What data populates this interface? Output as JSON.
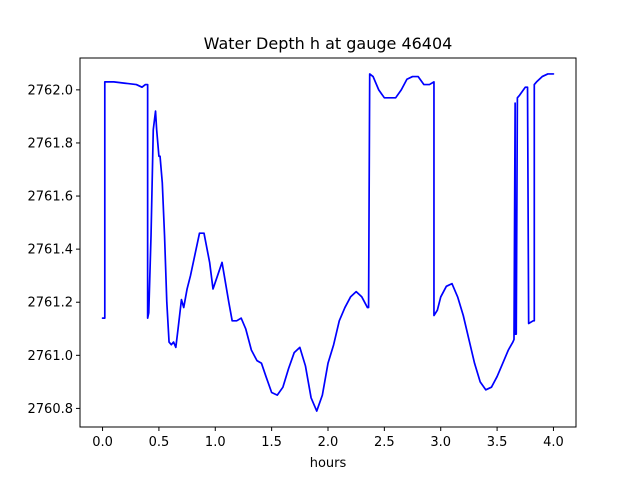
{
  "chart_data": {
    "type": "line",
    "title": "Water Depth h at gauge 46404",
    "xlabel": "hours",
    "ylabel": "",
    "xlim": [
      -0.2,
      4.2
    ],
    "ylim": [
      2760.73,
      2762.12
    ],
    "grid": false,
    "x_ticks": [
      "0.0",
      "0.5",
      "1.0",
      "1.5",
      "2.0",
      "2.5",
      "3.0",
      "3.5",
      "4.0"
    ],
    "y_ticks": [
      "2760.8",
      "2761.0",
      "2761.2",
      "2761.4",
      "2761.6",
      "2761.8",
      "2762.0"
    ],
    "series": [
      {
        "color": "#0000ff",
        "x": [
          0.0,
          0.02,
          0.02,
          0.1,
          0.2,
          0.3,
          0.35,
          0.38,
          0.4,
          0.4,
          0.41,
          0.43,
          0.45,
          0.47,
          0.48,
          0.5,
          0.51,
          0.53,
          0.55,
          0.57,
          0.59,
          0.61,
          0.63,
          0.65,
          0.67,
          0.7,
          0.72,
          0.75,
          0.78,
          0.82,
          0.86,
          0.9,
          0.95,
          0.98,
          1.02,
          1.06,
          1.08,
          1.12,
          1.15,
          1.19,
          1.23,
          1.27,
          1.32,
          1.37,
          1.41,
          1.45,
          1.5,
          1.55,
          1.6,
          1.65,
          1.7,
          1.75,
          1.8,
          1.85,
          1.9,
          1.95,
          2.0,
          2.05,
          2.1,
          2.15,
          2.2,
          2.25,
          2.3,
          2.35,
          2.36,
          2.37,
          2.4,
          2.45,
          2.5,
          2.55,
          2.6,
          2.65,
          2.7,
          2.75,
          2.8,
          2.85,
          2.9,
          2.94,
          2.94,
          2.97,
          3.0,
          3.05,
          3.1,
          3.15,
          3.2,
          3.25,
          3.3,
          3.35,
          3.4,
          3.45,
          3.5,
          3.55,
          3.6,
          3.64,
          3.65,
          3.66,
          3.66,
          3.67,
          3.68,
          3.7,
          3.75,
          3.77,
          3.78,
          3.82,
          3.83,
          3.83,
          3.85,
          3.9,
          3.95,
          4.0
        ],
        "values": [
          2761.14,
          2761.14,
          2762.03,
          2762.03,
          2762.025,
          2762.02,
          2762.01,
          2762.02,
          2762.02,
          2761.14,
          2761.16,
          2761.45,
          2761.85,
          2761.92,
          2761.85,
          2761.75,
          2761.75,
          2761.65,
          2761.45,
          2761.2,
          2761.05,
          2761.04,
          2761.05,
          2761.03,
          2761.1,
          2761.21,
          2761.18,
          2761.25,
          2761.3,
          2761.38,
          2761.46,
          2761.46,
          2761.35,
          2761.25,
          2761.3,
          2761.35,
          2761.3,
          2761.2,
          2761.13,
          2761.13,
          2761.14,
          2761.1,
          2761.02,
          2760.98,
          2760.97,
          2760.92,
          2760.86,
          2760.85,
          2760.88,
          2760.95,
          2761.01,
          2761.03,
          2760.96,
          2760.84,
          2760.79,
          2760.85,
          2760.97,
          2761.04,
          2761.13,
          2761.18,
          2761.22,
          2761.24,
          2761.22,
          2761.18,
          2761.18,
          2762.06,
          2762.05,
          2762.0,
          2761.97,
          2761.97,
          2761.97,
          2762.0,
          2762.04,
          2762.05,
          2762.05,
          2762.02,
          2762.02,
          2762.03,
          2761.15,
          2761.17,
          2761.22,
          2761.26,
          2761.27,
          2761.22,
          2761.15,
          2761.06,
          2760.97,
          2760.9,
          2760.87,
          2760.88,
          2760.92,
          2760.97,
          2761.02,
          2761.05,
          2761.06,
          2761.95,
          2761.08,
          2761.08,
          2761.97,
          2761.98,
          2762.01,
          2762.01,
          2761.12,
          2761.13,
          2761.13,
          2762.02,
          2762.03,
          2762.05,
          2762.06,
          2762.06
        ]
      }
    ]
  }
}
